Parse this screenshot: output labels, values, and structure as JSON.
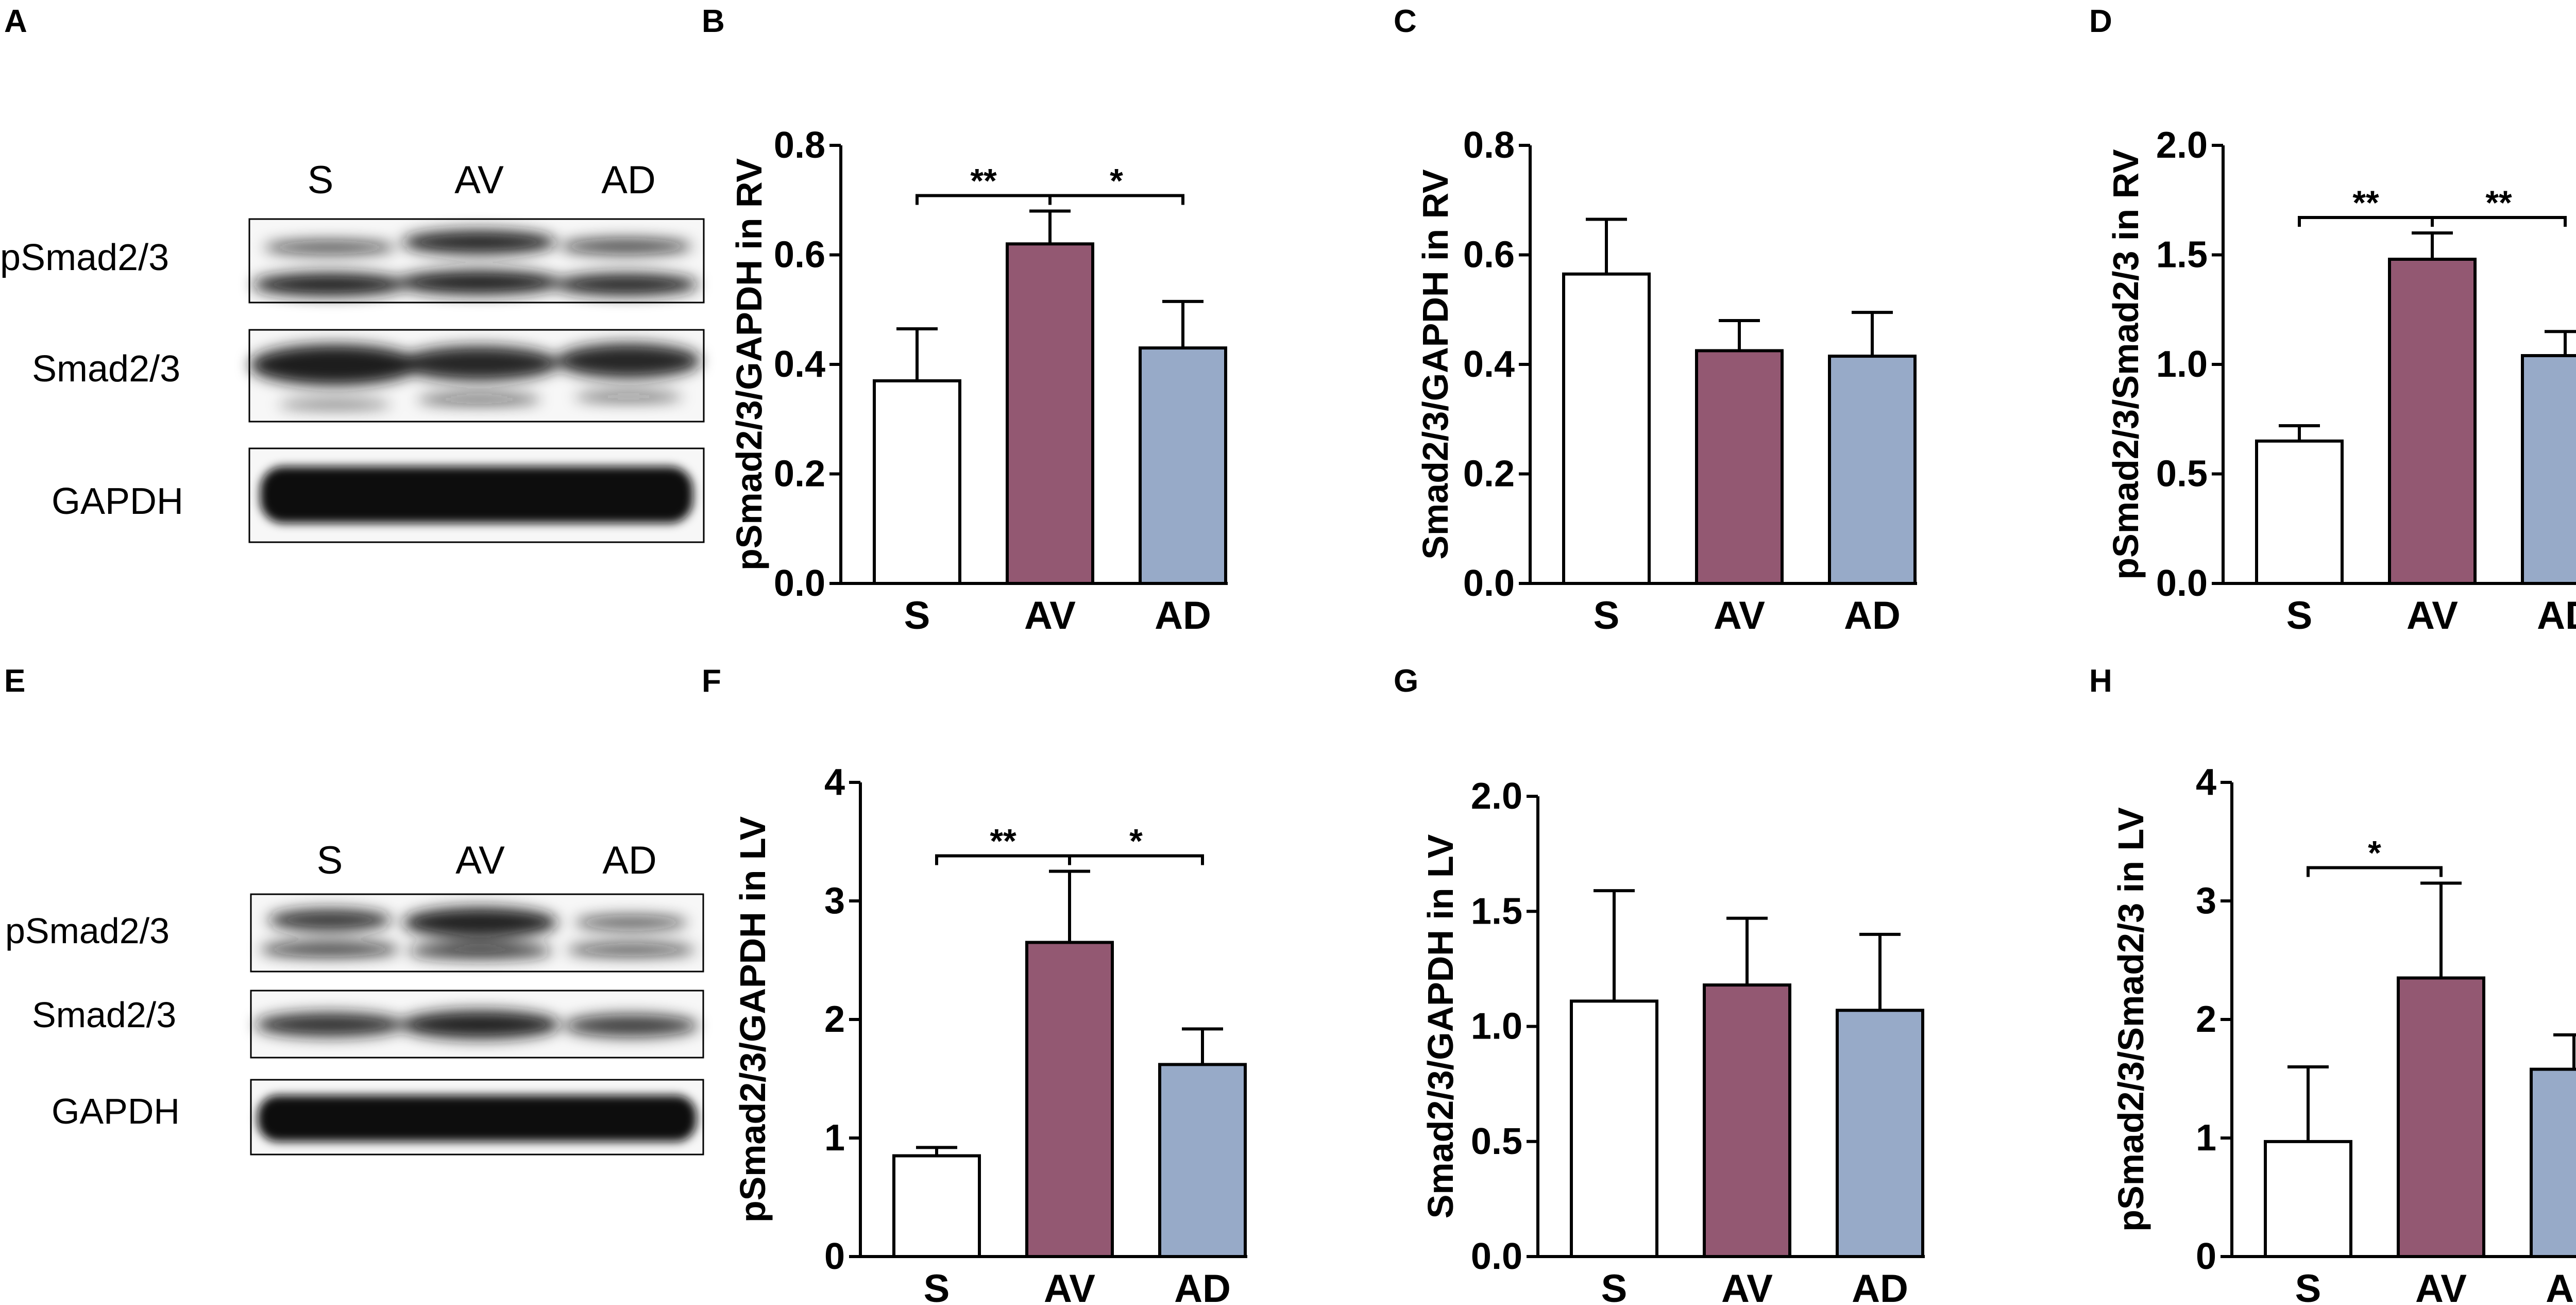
{
  "figure": {
    "panel_letters": [
      "A",
      "B",
      "C",
      "D",
      "E",
      "F",
      "G",
      "H"
    ],
    "bar_colors": {
      "S": "#ffffff",
      "AV": "#935872",
      "AD": "#97aac8"
    },
    "blot_band_color": "#141414",
    "blots": [
      {
        "panel": "A",
        "lanes": [
          "S",
          "AV",
          "AD"
        ],
        "rows": [
          {
            "label": "pSmad2/3",
            "pattern": "double-band"
          },
          {
            "label": "Smad2/3",
            "pattern": "double-band"
          },
          {
            "label": "GAPDH",
            "pattern": "single-heavy-band"
          }
        ]
      },
      {
        "panel": "E",
        "lanes": [
          "S",
          "AV",
          "AD"
        ],
        "rows": [
          {
            "label": "pSmad2/3",
            "pattern": "double-band"
          },
          {
            "label": "Smad2/3",
            "pattern": "single-band"
          },
          {
            "label": "GAPDH",
            "pattern": "single-heavy-band"
          }
        ]
      }
    ]
  },
  "chart_data": [
    {
      "panel": "B",
      "type": "bar",
      "ylabel": "pSmad2/3/GAPDH in RV",
      "categories": [
        "S",
        "AV",
        "AD"
      ],
      "values": [
        0.37,
        0.62,
        0.43
      ],
      "errors": [
        0.095,
        0.06,
        0.085
      ],
      "ylim": [
        0,
        0.8
      ],
      "yticks": [
        "0.0",
        "0.2",
        "0.4",
        "0.6",
        "0.8"
      ],
      "significance": [
        {
          "from": "S",
          "to": "AV",
          "label": "**"
        },
        {
          "from": "AV",
          "to": "AD",
          "label": "*"
        }
      ]
    },
    {
      "panel": "C",
      "type": "bar",
      "ylabel": "Smad2/3/GAPDH in RV",
      "categories": [
        "S",
        "AV",
        "AD"
      ],
      "values": [
        0.565,
        0.425,
        0.415
      ],
      "errors": [
        0.1,
        0.055,
        0.08
      ],
      "ylim": [
        0,
        0.8
      ],
      "yticks": [
        "0.0",
        "0.2",
        "0.4",
        "0.6",
        "0.8"
      ],
      "significance": []
    },
    {
      "panel": "D",
      "type": "bar",
      "ylabel": "pSmad2/3/Smad2/3 in RV",
      "categories": [
        "S",
        "AV",
        "AD"
      ],
      "values": [
        0.65,
        1.48,
        1.04
      ],
      "errors": [
        0.07,
        0.12,
        0.11
      ],
      "ylim": [
        0,
        2.0
      ],
      "yticks": [
        "0.0",
        "0.5",
        "1.0",
        "1.5",
        "2.0"
      ],
      "significance": [
        {
          "from": "S",
          "to": "AV",
          "label": "**"
        },
        {
          "from": "AV",
          "to": "AD",
          "label": "**"
        }
      ]
    },
    {
      "panel": "F",
      "type": "bar",
      "ylabel": "pSmad2/3/GAPDH in LV",
      "categories": [
        "S",
        "AV",
        "AD"
      ],
      "values": [
        0.85,
        2.65,
        1.62
      ],
      "errors": [
        0.07,
        0.6,
        0.3
      ],
      "ylim": [
        0,
        4
      ],
      "yticks": [
        "0",
        "1",
        "2",
        "3",
        "4"
      ],
      "significance": [
        {
          "from": "S",
          "to": "AV",
          "label": "**"
        },
        {
          "from": "AV",
          "to": "AD",
          "label": "*"
        }
      ]
    },
    {
      "panel": "G",
      "type": "bar",
      "ylabel": "Smad2/3/GAPDH in LV",
      "categories": [
        "S",
        "AV",
        "AD"
      ],
      "values": [
        1.11,
        1.18,
        1.07
      ],
      "errors": [
        0.48,
        0.29,
        0.33
      ],
      "ylim": [
        0,
        2.0
      ],
      "yticks": [
        "0.0",
        "0.5",
        "1.0",
        "1.5",
        "2.0"
      ],
      "significance": []
    },
    {
      "panel": "H",
      "type": "bar",
      "ylabel": "pSmad2/3/Smad2/3 in LV",
      "categories": [
        "S",
        "AV",
        "AD"
      ],
      "values": [
        0.97,
        2.35,
        1.58
      ],
      "errors": [
        0.63,
        0.8,
        0.29
      ],
      "ylim": [
        0,
        4
      ],
      "yticks": [
        "0",
        "1",
        "2",
        "3",
        "4"
      ],
      "significance": [
        {
          "from": "S",
          "to": "AV",
          "label": "*"
        }
      ]
    }
  ]
}
